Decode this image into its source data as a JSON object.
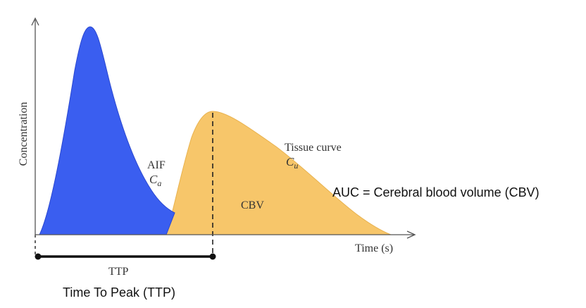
{
  "axes": {
    "ylabel": "Concentration",
    "xlabel": "Time (s)"
  },
  "curves": {
    "aif": {
      "label": "AIF",
      "symbol_base": "C",
      "symbol_sub": "a",
      "color": "#3a5ef0"
    },
    "tissue": {
      "label": "Tissue curve",
      "symbol_base": "C",
      "symbol_sub": "u",
      "color": "#f7c66a"
    }
  },
  "area_label": "CBV",
  "ttp": {
    "short_label": "TTP",
    "caption": "Time To Peak (TTP)"
  },
  "auc_caption": "AUC = Cerebral blood volume (CBV)"
}
